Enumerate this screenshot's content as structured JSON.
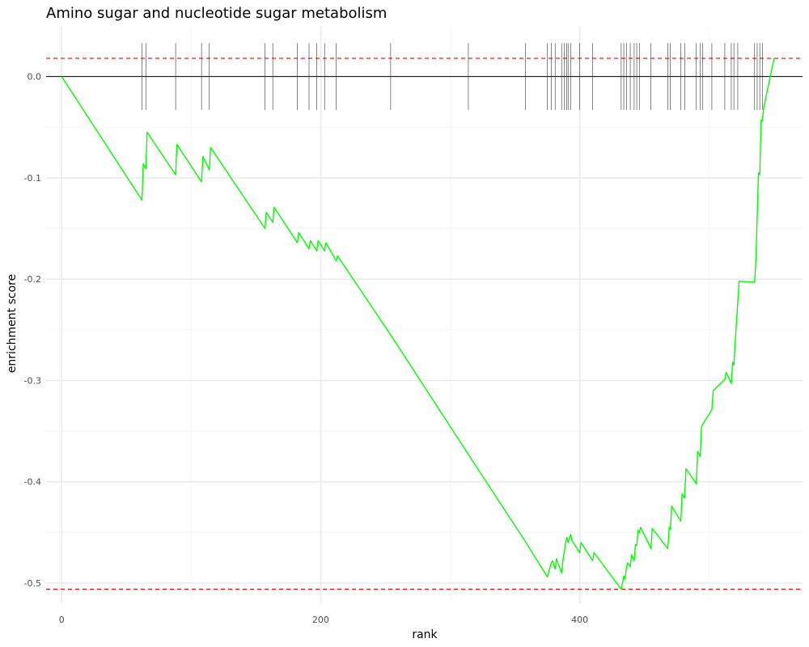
{
  "chart_data": {
    "type": "line",
    "title": "Amino sugar and nucleotide sugar metabolism",
    "xlabel": "rank",
    "ylabel": "enrichment score",
    "xlim": [
      -12,
      572
    ],
    "ylim": [
      -0.52,
      0.05
    ],
    "x_ticks": [
      0,
      200,
      400
    ],
    "x_tick_labels": [
      "0",
      "200",
      "400"
    ],
    "y_ticks": [
      0.0,
      -0.1,
      -0.2,
      -0.3,
      -0.4,
      -0.5
    ],
    "y_tick_labels": [
      "0.0",
      "-0.1",
      "-0.2",
      "-0.3",
      "-0.4",
      "-0.5"
    ],
    "grid": true,
    "zero_line": 0,
    "threshold_lines": [
      0.018,
      -0.506
    ],
    "threshold_color": "#ff0000",
    "series": [
      {
        "color": "#00ff00",
        "x": [
          0,
          62,
          63,
          64,
          65,
          66,
          88,
          89,
          108,
          109,
          114,
          115,
          157,
          158,
          163,
          164,
          182,
          183,
          191,
          192,
          197,
          198,
          203,
          204,
          212,
          213,
          254,
          314,
          358,
          375,
          378,
          379,
          381,
          382,
          386,
          387,
          388,
          389,
          390,
          391,
          393,
          394,
          400,
          401,
          410,
          411,
          432,
          433,
          434,
          435,
          436,
          437,
          439,
          440,
          442,
          443,
          444,
          445,
          446,
          447,
          455,
          456,
          468,
          469,
          470,
          471,
          478,
          479,
          481,
          482,
          490,
          491,
          492,
          493,
          494,
          495,
          502,
          503,
          512,
          513,
          517,
          518,
          519,
          520,
          522,
          523,
          535,
          536,
          537,
          538,
          539,
          540,
          541,
          542,
          550
        ],
        "y": [
          0,
          -0.122,
          -0.086,
          -0.089,
          -0.091,
          -0.055,
          -0.097,
          -0.067,
          -0.104,
          -0.079,
          -0.092,
          -0.07,
          -0.15,
          -0.134,
          -0.144,
          -0.129,
          -0.164,
          -0.154,
          -0.17,
          -0.162,
          -0.172,
          -0.162,
          -0.172,
          -0.164,
          -0.182,
          -0.177,
          -0.255,
          -0.373,
          -0.459,
          -0.494,
          -0.48,
          -0.478,
          -0.486,
          -0.476,
          -0.49,
          -0.478,
          -0.47,
          -0.461,
          -0.455,
          -0.46,
          -0.452,
          -0.458,
          -0.47,
          -0.46,
          -0.478,
          -0.47,
          -0.506,
          -0.5,
          -0.493,
          -0.496,
          -0.485,
          -0.48,
          -0.484,
          -0.472,
          -0.478,
          -0.462,
          -0.463,
          -0.448,
          -0.45,
          -0.445,
          -0.466,
          -0.446,
          -0.466,
          -0.445,
          -0.447,
          -0.424,
          -0.439,
          -0.412,
          -0.416,
          -0.387,
          -0.402,
          -0.37,
          -0.372,
          -0.375,
          -0.346,
          -0.343,
          -0.329,
          -0.31,
          -0.299,
          -0.292,
          -0.303,
          -0.282,
          -0.285,
          -0.262,
          -0.223,
          -0.202,
          -0.203,
          -0.181,
          -0.138,
          -0.095,
          -0.097,
          -0.043,
          -0.044,
          -0.031,
          0.018
        ]
      }
    ],
    "hit_color": "#333333",
    "hits": [
      62,
      65,
      88,
      108,
      114,
      157,
      163,
      182,
      191,
      197,
      203,
      212,
      254,
      314,
      358,
      375,
      378,
      381,
      386,
      388,
      390,
      391,
      393,
      400,
      410,
      432,
      434,
      436,
      439,
      442,
      444,
      446,
      455,
      468,
      470,
      478,
      481,
      490,
      493,
      495,
      502,
      512,
      517,
      519,
      522,
      535,
      537,
      539,
      541
    ]
  }
}
